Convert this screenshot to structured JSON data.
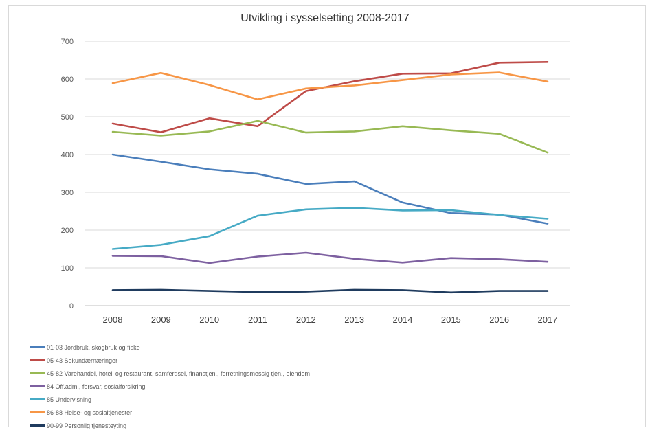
{
  "chart_data": {
    "type": "line",
    "title": "Utvikling i sysselsetting 2008-2017",
    "xlabel": "",
    "ylabel": "",
    "categories": [
      "2008",
      "2009",
      "2010",
      "2011",
      "2012",
      "2013",
      "2014",
      "2015",
      "2016",
      "2017"
    ],
    "ylim": [
      0,
      700
    ],
    "yticks": [
      "0",
      "100",
      "200",
      "300",
      "400",
      "500",
      "600",
      "700"
    ],
    "grid": true,
    "legend_position": "bottom-left",
    "series": [
      {
        "name": "01-03 Jordbruk, skogbruk og fiske",
        "color": "#4a7ebb",
        "values": [
          400,
          381,
          361,
          349,
          322,
          329,
          273,
          245,
          241,
          217
        ]
      },
      {
        "name": "05-43 Sekundærnæringer",
        "color": "#be4b48",
        "values": [
          482,
          459,
          496,
          475,
          568,
          594,
          614,
          615,
          643,
          645
        ]
      },
      {
        "name": "45-82 Varehandel, hotell og restaurant, samferdsel, finanstjen., forretningsmessig tjen., eiendom",
        "color": "#98b954",
        "values": [
          460,
          450,
          461,
          489,
          458,
          461,
          475,
          464,
          455,
          405
        ]
      },
      {
        "name": "84 Off.adm., forsvar, sosialforsikring",
        "color": "#7d60a0",
        "values": [
          132,
          131,
          113,
          130,
          140,
          124,
          114,
          126,
          123,
          116
        ]
      },
      {
        "name": "85 Undervisning",
        "color": "#46aac5",
        "values": [
          150,
          161,
          184,
          238,
          255,
          259,
          252,
          253,
          240,
          230
        ]
      },
      {
        "name": "86-88 Helse- og sosialtjenester",
        "color": "#f79646",
        "values": [
          589,
          616,
          584,
          546,
          575,
          583,
          597,
          612,
          617,
          593
        ]
      },
      {
        "name": "90-99 Personlig tjenesteyting",
        "color": "#1f3b5e",
        "values": [
          41,
          42,
          39,
          36,
          37,
          42,
          41,
          35,
          39,
          39
        ]
      }
    ]
  }
}
